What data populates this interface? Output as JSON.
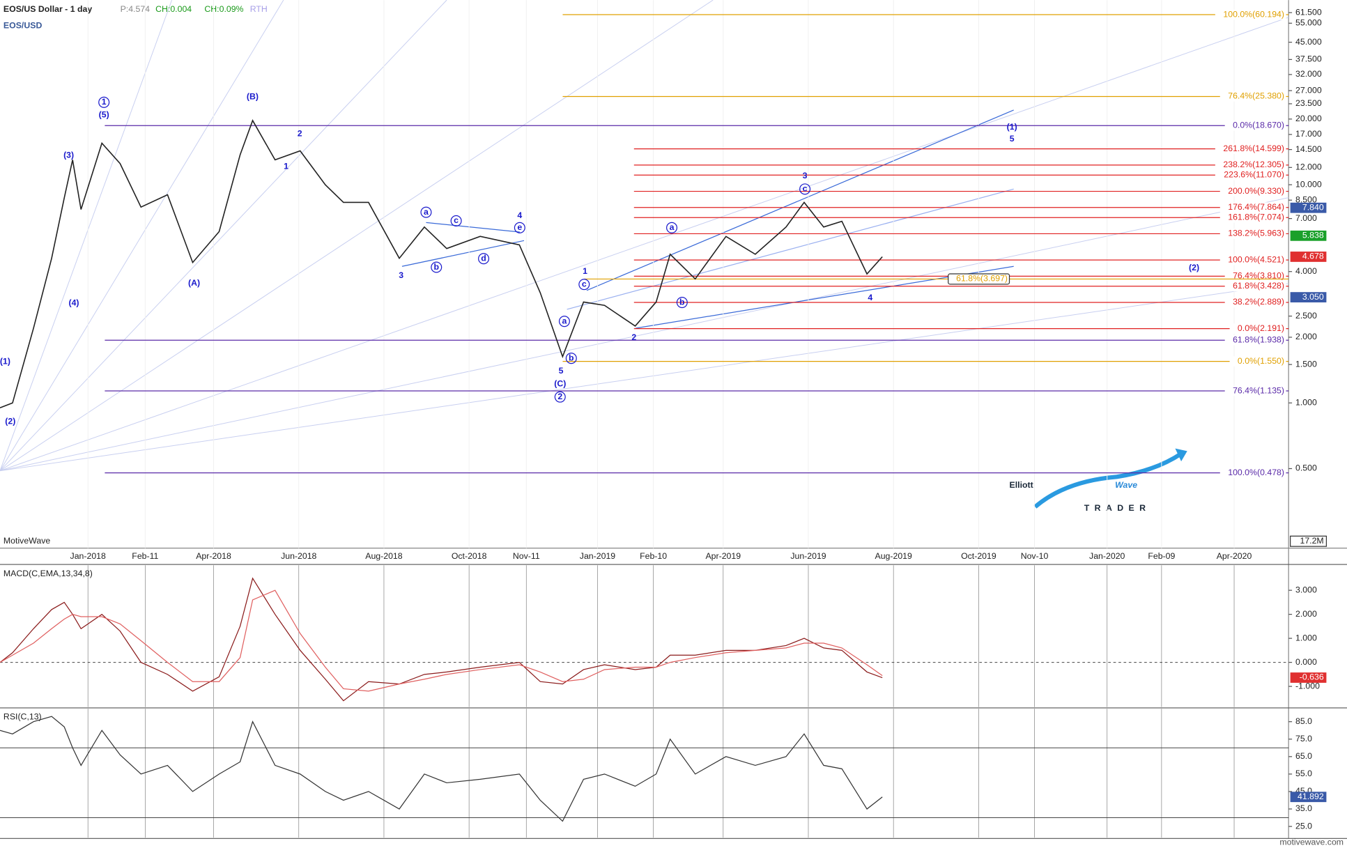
{
  "header": {
    "symbol": "EOS/USD",
    "price": "P:4.574",
    "change": "CH:0.004",
    "change_pct": "CH:0.09%",
    "session": "RTH",
    "watermark": "MotiveWave",
    "footer": "motivewave.com"
  },
  "logo": {
    "word1": "Elliott",
    "word2": "Wave",
    "word3": "TRADER"
  },
  "chart_data": [
    {
      "type": "line",
      "title": "EOS/US Dollar - 1 day",
      "log": true,
      "xlim": [
        "2017-10-30",
        "2020-05-10"
      ],
      "ylim": [
        0.216,
        70.2
      ],
      "xticks": [
        {
          "value": "2018-01-01",
          "label": "Jan-2018"
        },
        {
          "value": "2018-02-11",
          "label": "Feb-11"
        },
        {
          "value": "2018-04-01",
          "label": "Apr-2018"
        },
        {
          "value": "2018-06-01",
          "label": "Jun-2018"
        },
        {
          "value": "2018-08-01",
          "label": "Aug-2018"
        },
        {
          "value": "2018-10-01",
          "label": "Oct-2018"
        },
        {
          "value": "2018-11-11",
          "label": "Nov-11"
        },
        {
          "value": "2019-01-01",
          "label": "Jan-2019"
        },
        {
          "value": "2019-02-10",
          "label": "Feb-10"
        },
        {
          "value": "2019-04-01",
          "label": "Apr-2019"
        },
        {
          "value": "2019-06-01",
          "label": "Jun-2019"
        },
        {
          "value": "2019-08-01",
          "label": "Aug-2019"
        },
        {
          "value": "2019-10-01",
          "label": "Oct-2019"
        },
        {
          "value": "2019-11-10",
          "label": "Nov-10"
        },
        {
          "value": "2020-01-01",
          "label": "Jan-2020"
        },
        {
          "value": "2020-02-09",
          "label": "Feb-09"
        },
        {
          "value": "2020-04-01",
          "label": "Apr-2020"
        }
      ],
      "yticks": [
        {
          "value": 61.5,
          "label": "61.500"
        },
        {
          "value": 55,
          "label": "55.000"
        },
        {
          "value": 45,
          "label": "45.000"
        },
        {
          "value": 37.5,
          "label": "37.500"
        },
        {
          "value": 32,
          "label": "32.000"
        },
        {
          "value": 27,
          "label": "27.000"
        },
        {
          "value": 23.5,
          "label": "23.500"
        },
        {
          "value": 20,
          "label": "20.000"
        },
        {
          "value": 17,
          "label": "17.000"
        },
        {
          "value": 14.5,
          "label": "14.500"
        },
        {
          "value": 12,
          "label": "12.000"
        },
        {
          "value": 10,
          "label": "10.000"
        },
        {
          "value": 8.5,
          "label": "8.500"
        },
        {
          "value": 7,
          "label": "7.000"
        },
        {
          "value": 4,
          "label": "4.000"
        },
        {
          "value": 2.5,
          "label": "2.500"
        },
        {
          "value": 2,
          "label": "2.000"
        },
        {
          "value": 1.5,
          "label": "1.500"
        },
        {
          "value": 1,
          "label": "1.000"
        },
        {
          "value": 0.5,
          "label": "0.500"
        }
      ],
      "x": [
        "2017-10-30",
        "2017-11-08",
        "2017-11-23",
        "2017-12-06",
        "2017-12-15",
        "2017-12-21",
        "2017-12-27",
        "2018-01-11",
        "2018-01-24",
        "2018-02-08",
        "2018-02-27",
        "2018-03-17",
        "2018-04-05",
        "2018-04-20",
        "2018-04-29",
        "2018-05-15",
        "2018-06-02",
        "2018-06-20",
        "2018-07-03",
        "2018-07-21",
        "2018-08-12",
        "2018-08-30",
        "2018-09-15",
        "2018-10-09",
        "2018-11-06",
        "2018-11-21",
        "2018-12-07",
        "2018-12-22",
        "2019-01-06",
        "2019-01-28",
        "2019-02-12",
        "2019-02-22",
        "2019-03-12",
        "2019-04-03",
        "2019-04-24",
        "2019-05-16",
        "2019-05-29",
        "2019-06-12",
        "2019-06-25",
        "2019-07-13",
        "2019-07-24"
      ],
      "series": [
        {
          "color": "#222222",
          "values": [
            0.95,
            1.0,
            2.2,
            4.6,
            8.7,
            13,
            7.7,
            15.5,
            12.5,
            7.9,
            9,
            4.4,
            6.1,
            13.7,
            19.7,
            13,
            14.3,
            10,
            8.3,
            8.3,
            4.6,
            6.4,
            5.1,
            5.8,
            5.3,
            3.2,
            1.63,
            2.9,
            2.8,
            2.25,
            2.9,
            4.8,
            3.7,
            5.8,
            4.8,
            6.4,
            8.3,
            6.4,
            6.8,
            3.9,
            4.678
          ]
        }
      ],
      "last_marker_color": "#e03030",
      "price_markers": [
        {
          "value": 7.84,
          "label": "7.840",
          "color": "#3a5aa8"
        },
        {
          "value": 5.838,
          "label": "5.838",
          "color": "#1aa02a"
        },
        {
          "value": 3.05,
          "label": "3.050",
          "color": "#3a5aa8"
        }
      ],
      "volume_label": "17.2M",
      "fib_levels": [
        {
          "label": "100.0%(60.194)",
          "value": 60.194,
          "color": "#e0a000"
        },
        {
          "label": "76.4%(25.380)",
          "value": 25.38,
          "color": "#e0a000"
        },
        {
          "label": "0.0%(18.670)",
          "value": 18.67,
          "color": "#5a2aa8"
        },
        {
          "label": "261.8%(14.599)",
          "value": 14.599,
          "color": "#e02020"
        },
        {
          "label": "238.2%(12.305)",
          "value": 12.305,
          "color": "#e02020"
        },
        {
          "label": "223.6%(11.070)",
          "value": 11.07,
          "color": "#e02020"
        },
        {
          "label": "200.0%(9.330)",
          "value": 9.33,
          "color": "#e02020"
        },
        {
          "label": "176.4%(7.864)",
          "value": 7.864,
          "color": "#e02020"
        },
        {
          "label": "161.8%(7.074)",
          "value": 7.074,
          "color": "#e02020"
        },
        {
          "label": "138.2%(5.963)",
          "value": 5.963,
          "color": "#e02020"
        },
        {
          "label": "100.0%(4.521)",
          "value": 4.521,
          "color": "#e02020"
        },
        {
          "label": "76.4%(3.810)",
          "value": 3.81,
          "color": "#e02020"
        },
        {
          "label": "61.8%(3.428)",
          "value": 3.428,
          "color": "#e02020"
        },
        {
          "label": "38.2%(2.889)",
          "value": 2.889,
          "color": "#e02020"
        },
        {
          "label": "0.0%(2.191)",
          "value": 2.191,
          "color": "#e02020"
        },
        {
          "label": "61.8%(1.938)",
          "value": 1.938,
          "color": "#5a2aa8"
        },
        {
          "label": "0.0%(1.550)",
          "value": 1.55,
          "color": "#e0a000"
        },
        {
          "label": "76.4%(1.135)",
          "value": 1.135,
          "color": "#5a2aa8"
        },
        {
          "label": "100.0%(0.478)",
          "value": 0.478,
          "color": "#5a2aa8"
        },
        {
          "label": "61.8%(3.697)",
          "value": 3.697,
          "color": "#e0a000",
          "boxed": true
        }
      ],
      "wave_label_color": "#1a1acc",
      "wave_labels": [
        {
          "text": "(1)"
        },
        {
          "text": "(2)"
        },
        {
          "text": "(3)"
        },
        {
          "text": "(4)"
        },
        {
          "text": "(5)"
        },
        {
          "text": "1",
          "circled": true
        },
        {
          "text": "(B)"
        },
        {
          "text": "2"
        },
        {
          "text": "1"
        },
        {
          "text": "(A)"
        },
        {
          "text": "3"
        },
        {
          "text": "a",
          "circled": true
        },
        {
          "text": "b",
          "circled": true
        },
        {
          "text": "c",
          "circled": true
        },
        {
          "text": "d",
          "circled": true
        },
        {
          "text": "4"
        },
        {
          "text": "e",
          "circled": true
        },
        {
          "text": "a",
          "circled": true
        },
        {
          "text": "b",
          "circled": true
        },
        {
          "text": "5"
        },
        {
          "text": "(C)"
        },
        {
          "text": "2",
          "circled": true
        },
        {
          "text": "1"
        },
        {
          "text": "c",
          "circled": true
        },
        {
          "text": "2"
        },
        {
          "text": "a",
          "circled": true
        },
        {
          "text": "b",
          "circled": true
        },
        {
          "text": "3"
        },
        {
          "text": "c",
          "circled": true
        },
        {
          "text": "4"
        },
        {
          "text": "(1)"
        },
        {
          "text": "5"
        },
        {
          "text": "(2)"
        }
      ]
    },
    {
      "type": "line",
      "title": "MACD(C,EMA,13,34,8)",
      "ylim": [
        -1.86,
        4.04
      ],
      "yticks": [
        {
          "value": 3,
          "label": "3.000"
        },
        {
          "value": 2,
          "label": "2.000"
        },
        {
          "value": 1,
          "label": "1.000"
        },
        {
          "value": 0,
          "label": "0.000"
        },
        {
          "value": -1,
          "label": "-1.000"
        }
      ],
      "hlines": [
        0
      ],
      "hline_style": "dashed",
      "series": [
        {
          "color": "#8a1a1a",
          "values": [
            0.0,
            0.4,
            1.4,
            2.2,
            2.5,
            2.0,
            1.4,
            2.0,
            1.3,
            0.0,
            -0.5,
            -1.2,
            -0.6,
            1.5,
            3.5,
            2.0,
            0.5,
            -0.7,
            -1.6,
            -0.8,
            -0.9,
            -0.5,
            -0.4,
            -0.2,
            0.0,
            -0.8,
            -0.9,
            -0.3,
            -0.1,
            -0.3,
            -0.2,
            0.3,
            0.3,
            0.5,
            0.5,
            0.7,
            1.0,
            0.6,
            0.5,
            -0.4,
            -0.636
          ]
        },
        {
          "color": "#e06060",
          "values": [
            0.0,
            0.3,
            0.8,
            1.4,
            1.8,
            2.0,
            1.9,
            1.9,
            1.6,
            0.9,
            0.0,
            -0.8,
            -0.8,
            0.2,
            2.6,
            3.0,
            1.2,
            -0.2,
            -1.1,
            -1.2,
            -0.9,
            -0.7,
            -0.5,
            -0.3,
            -0.1,
            -0.4,
            -0.8,
            -0.7,
            -0.3,
            -0.2,
            -0.2,
            0.0,
            0.2,
            0.4,
            0.5,
            0.6,
            0.8,
            0.8,
            0.6,
            -0.1,
            -0.55
          ]
        }
      ],
      "last_marker_color": "#e03030"
    },
    {
      "type": "line",
      "title": "RSI(C,13)",
      "ylim": [
        18.6,
        92.4
      ],
      "yticks": [
        {
          "value": 85,
          "label": "85.0"
        },
        {
          "value": 75,
          "label": "75.0"
        },
        {
          "value": 65,
          "label": "65.0"
        },
        {
          "value": 55,
          "label": "55.0"
        },
        {
          "value": 45,
          "label": "45.0"
        },
        {
          "value": 35,
          "label": "35.0"
        },
        {
          "value": 25,
          "label": "25.0"
        }
      ],
      "hlines": [
        70,
        30
      ],
      "hline_style": "solid",
      "series": [
        {
          "color": "#333333",
          "values": [
            80,
            78,
            85,
            88,
            82,
            70,
            60,
            80,
            66,
            55,
            60,
            45,
            55,
            62,
            85,
            60,
            55,
            45,
            40,
            45,
            35,
            55,
            50,
            52,
            55,
            40,
            28,
            52,
            55,
            48,
            55,
            75,
            55,
            65,
            60,
            65,
            78,
            60,
            58,
            35,
            41.892
          ]
        }
      ],
      "last_marker_color": "#3a5aa8"
    }
  ]
}
